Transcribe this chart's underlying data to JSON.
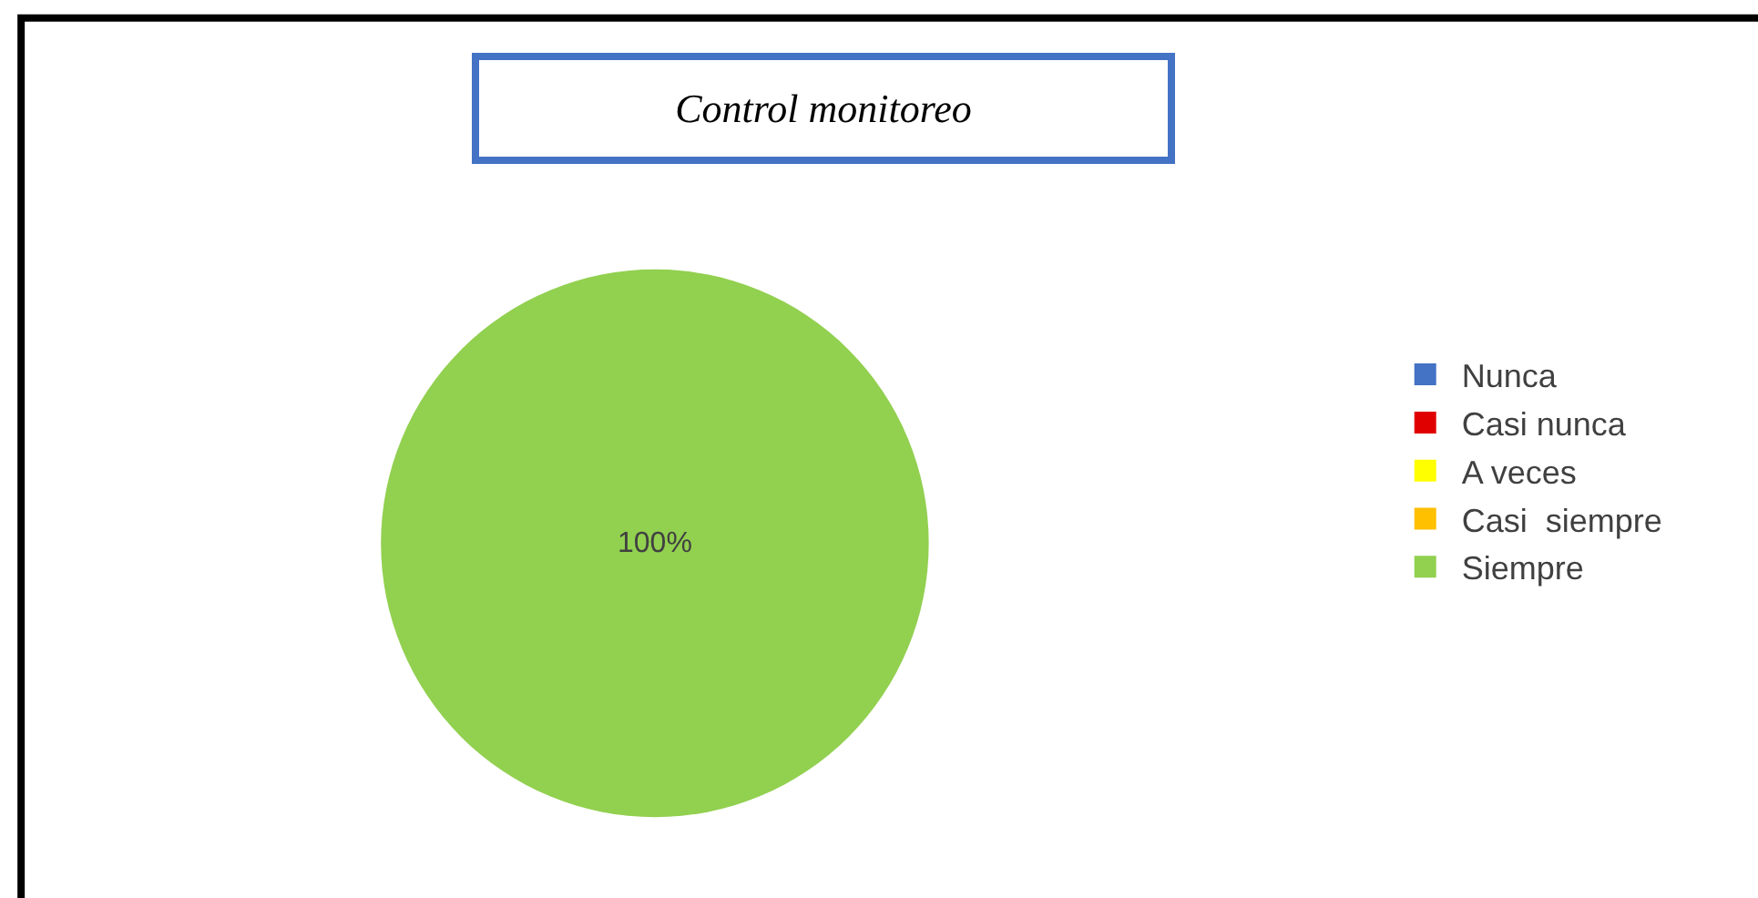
{
  "chart_data": {
    "type": "pie",
    "title": "Control monitoreo",
    "categories": [
      "Nunca",
      "Casi nunca",
      "A veces",
      "Casi  siempre",
      "Siempre"
    ],
    "values": [
      0,
      0,
      0,
      0,
      100
    ],
    "colors": [
      "#4472c4",
      "#e00000",
      "#ffff00",
      "#ffc000",
      "#92d050"
    ],
    "value_labels": [
      null,
      null,
      null,
      null,
      "100%"
    ],
    "legend": "right"
  }
}
